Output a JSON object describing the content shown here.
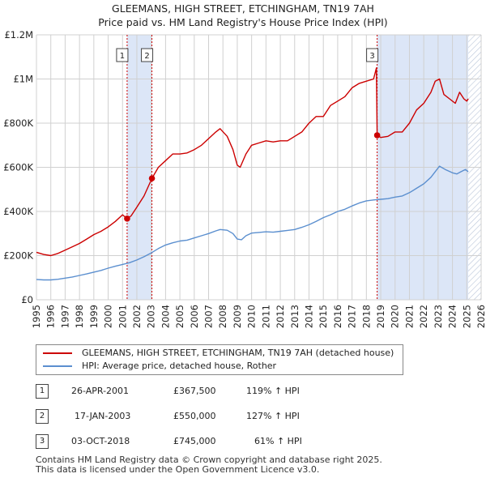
{
  "header": {
    "title": "GLEEMANS, HIGH STREET, ETCHINGHAM, TN19 7AH",
    "subtitle": "Price paid vs. HM Land Registry's House Price Index (HPI)"
  },
  "colors": {
    "property": "#cc0000",
    "hpi": "#5b8fcf",
    "shade": "#dce6f7",
    "grid": "#d0d0d0",
    "marker_line": "#cc0000"
  },
  "chart_data": {
    "type": "line",
    "title": "GLEEMANS, HIGH STREET, ETCHINGHAM, TN19 7AH",
    "subtitle": "Price paid vs. HM Land Registry's House Price Index (HPI)",
    "xlabel": "",
    "ylabel": "",
    "xlim": [
      1995,
      2026
    ],
    "ylim": [
      0,
      1200000
    ],
    "grid": true,
    "legend_position": "below",
    "x_ticks": [
      1995,
      1996,
      1997,
      1998,
      1999,
      2000,
      2001,
      2002,
      2003,
      2004,
      2005,
      2006,
      2007,
      2008,
      2009,
      2010,
      2011,
      2012,
      2013,
      2014,
      2015,
      2016,
      2017,
      2018,
      2019,
      2020,
      2021,
      2022,
      2023,
      2024,
      2025,
      2026
    ],
    "y_ticks": [
      {
        "value": 0,
        "label": "£0"
      },
      {
        "value": 200000,
        "label": "£200K"
      },
      {
        "value": 400000,
        "label": "£400K"
      },
      {
        "value": 600000,
        "label": "£600K"
      },
      {
        "value": 800000,
        "label": "£800K"
      },
      {
        "value": 1000000,
        "label": "£1M"
      },
      {
        "value": 1200000,
        "label": "£1.2M"
      }
    ],
    "shaded_regions": [
      {
        "from": 2001.32,
        "to": 2003.05
      },
      {
        "from": 2018.75,
        "to": 2025.1
      },
      {
        "from": 2025.1,
        "to": 2026.0,
        "hatched": true
      }
    ],
    "series": [
      {
        "name": "GLEEMANS, HIGH STREET, ETCHINGHAM, TN19 7AH (detached house)",
        "color": "#cc0000",
        "x": [
          1995.0,
          1995.5,
          1996.0,
          1996.5,
          1997.0,
          1997.5,
          1998.0,
          1998.5,
          1999.0,
          1999.5,
          2000.0,
          2000.5,
          2001.0,
          2001.32,
          2001.6,
          2002.0,
          2002.5,
          2003.05,
          2003.5,
          2004.0,
          2004.5,
          2005.0,
          2005.5,
          2006.0,
          2006.5,
          2007.0,
          2007.5,
          2007.8,
          2008.3,
          2008.7,
          2009.0,
          2009.2,
          2009.6,
          2010.0,
          2010.5,
          2011.0,
          2011.5,
          2012.0,
          2012.5,
          2013.0,
          2013.5,
          2014.0,
          2014.5,
          2015.0,
          2015.5,
          2016.0,
          2016.5,
          2017.0,
          2017.5,
          2018.0,
          2018.5,
          2018.7,
          2018.75,
          2019.0,
          2019.5,
          2020.0,
          2020.5,
          2021.0,
          2021.5,
          2022.0,
          2022.5,
          2022.8,
          2023.1,
          2023.4,
          2023.8,
          2024.2,
          2024.5,
          2024.8,
          2025.0,
          2025.1
        ],
        "values": [
          215000,
          205000,
          200000,
          210000,
          225000,
          240000,
          255000,
          275000,
          295000,
          310000,
          330000,
          355000,
          385000,
          367500,
          380000,
          420000,
          470000,
          550000,
          600000,
          630000,
          660000,
          660000,
          665000,
          680000,
          700000,
          730000,
          760000,
          775000,
          740000,
          680000,
          610000,
          600000,
          660000,
          700000,
          710000,
          720000,
          715000,
          720000,
          720000,
          740000,
          760000,
          800000,
          830000,
          830000,
          880000,
          900000,
          920000,
          960000,
          980000,
          990000,
          1000000,
          1050000,
          745000,
          735000,
          740000,
          760000,
          760000,
          800000,
          860000,
          890000,
          940000,
          990000,
          1000000,
          930000,
          910000,
          890000,
          940000,
          910000,
          900000,
          910000
        ]
      },
      {
        "name": "HPI: Average price, detached house, Rother",
        "color": "#5b8fcf",
        "x": [
          1995.0,
          1995.5,
          1996.0,
          1996.5,
          1997.0,
          1997.5,
          1998.0,
          1998.5,
          1999.0,
          1999.5,
          2000.0,
          2000.5,
          2001.0,
          2001.5,
          2002.0,
          2002.5,
          2003.0,
          2003.5,
          2004.0,
          2004.5,
          2005.0,
          2005.5,
          2006.0,
          2006.5,
          2007.0,
          2007.5,
          2007.8,
          2008.3,
          2008.7,
          2009.0,
          2009.3,
          2009.6,
          2010.0,
          2010.5,
          2011.0,
          2011.5,
          2012.0,
          2012.5,
          2013.0,
          2013.5,
          2014.0,
          2014.5,
          2015.0,
          2015.5,
          2016.0,
          2016.5,
          2017.0,
          2017.5,
          2018.0,
          2018.5,
          2019.0,
          2019.5,
          2020.0,
          2020.5,
          2021.0,
          2021.5,
          2022.0,
          2022.5,
          2022.8,
          2023.1,
          2023.5,
          2024.0,
          2024.3,
          2024.6,
          2024.9,
          2025.1
        ],
        "values": [
          92000,
          90000,
          90000,
          93000,
          98000,
          103000,
          110000,
          117000,
          125000,
          133000,
          143000,
          152000,
          160000,
          168000,
          180000,
          195000,
          212000,
          232000,
          248000,
          258000,
          266000,
          270000,
          280000,
          290000,
          300000,
          312000,
          318000,
          315000,
          300000,
          275000,
          272000,
          290000,
          302000,
          305000,
          308000,
          306000,
          310000,
          314000,
          318000,
          328000,
          340000,
          355000,
          372000,
          385000,
          400000,
          410000,
          425000,
          438000,
          448000,
          452000,
          455000,
          458000,
          465000,
          470000,
          485000,
          505000,
          525000,
          555000,
          580000,
          605000,
          590000,
          575000,
          570000,
          580000,
          590000,
          580000
        ]
      }
    ],
    "sales": [
      {
        "label": "1",
        "x": 2001.32,
        "value": 367500
      },
      {
        "label": "2",
        "x": 2003.05,
        "value": 550000
      },
      {
        "label": "3",
        "x": 2018.75,
        "value": 745000
      }
    ]
  },
  "legend": {
    "property": "GLEEMANS, HIGH STREET, ETCHINGHAM, TN19 7AH (detached house)",
    "hpi": "HPI: Average price, detached house, Rother"
  },
  "transactions": [
    {
      "num": "1",
      "date": "26-APR-2001",
      "price": "£367,500",
      "hpi": "119% ↑ HPI"
    },
    {
      "num": "2",
      "date": "17-JAN-2003",
      "price": "£550,000",
      "hpi": "127% ↑ HPI"
    },
    {
      "num": "3",
      "date": "03-OCT-2018",
      "price": "£745,000",
      "hpi": "61% ↑ HPI"
    }
  ],
  "footer": {
    "line1": "Contains HM Land Registry data © Crown copyright and database right 2025.",
    "line2": "This data is licensed under the Open Government Licence v3.0."
  }
}
